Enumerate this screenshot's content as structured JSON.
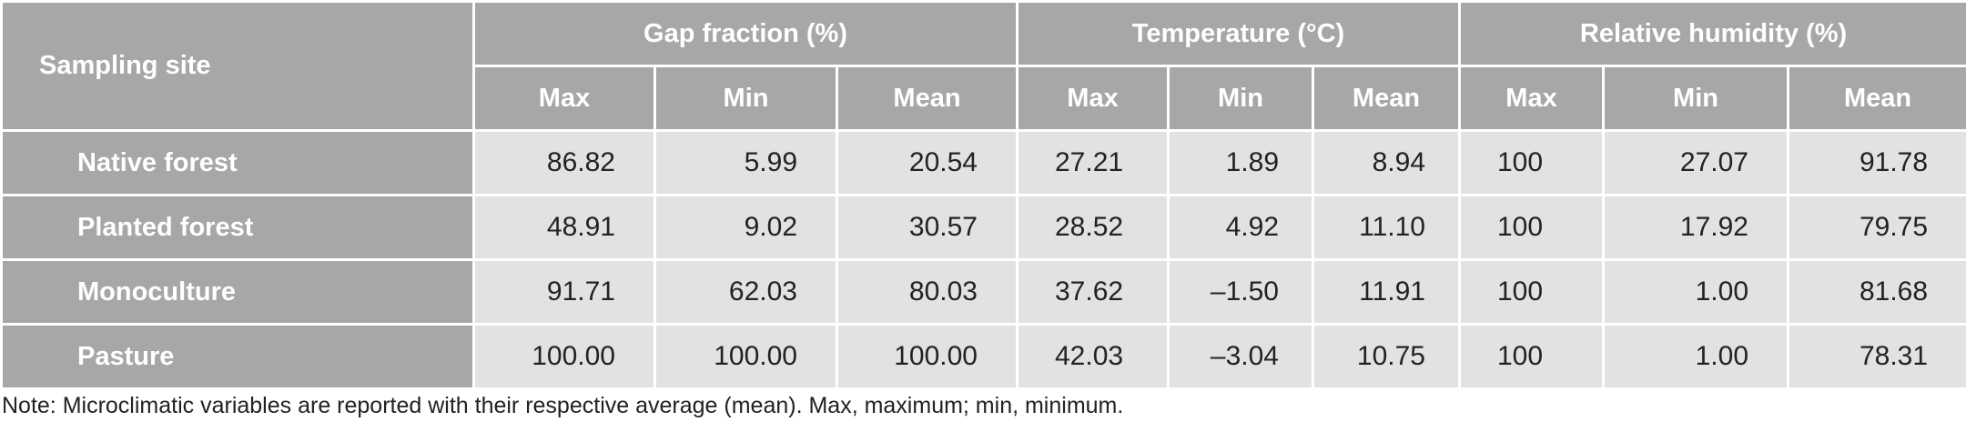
{
  "table": {
    "site_header": "Sampling site",
    "groups": [
      "Gap fraction (%)",
      "Temperature (°C)",
      "Relative humidity (%)"
    ],
    "subheaders": [
      "Max",
      "Min",
      "Mean",
      "Max",
      "Min",
      "Mean",
      "Max",
      "Min",
      "Mean"
    ],
    "rows": [
      {
        "site": "Native forest",
        "values": [
          "86.82",
          "5.99",
          "20.54",
          "27.21",
          "1.89",
          "8.94",
          "100",
          "27.07",
          "91.78"
        ]
      },
      {
        "site": "Planted forest",
        "values": [
          "48.91",
          "9.02",
          "30.57",
          "28.52",
          "4.92",
          "11.10",
          "100",
          "17.92",
          "79.75"
        ]
      },
      {
        "site": "Monoculture",
        "values": [
          "91.71",
          "62.03",
          "80.03",
          "37.62",
          "–1.50",
          "11.91",
          "100",
          "1.00",
          "81.68"
        ]
      },
      {
        "site": "Pasture",
        "values": [
          "100.00",
          "100.00",
          "100.00",
          "42.03",
          "–3.04",
          "10.75",
          "100",
          "1.00",
          "78.31"
        ]
      }
    ]
  },
  "note": "Note: Microclimatic variables are reported with their respective average (mean). Max, maximum; min, minimum.",
  "colors": {
    "header_bg": "#a9a6a6",
    "cell_bg": "#e3e2e2",
    "header_text": "#ffffff",
    "body_text": "#222222"
  }
}
